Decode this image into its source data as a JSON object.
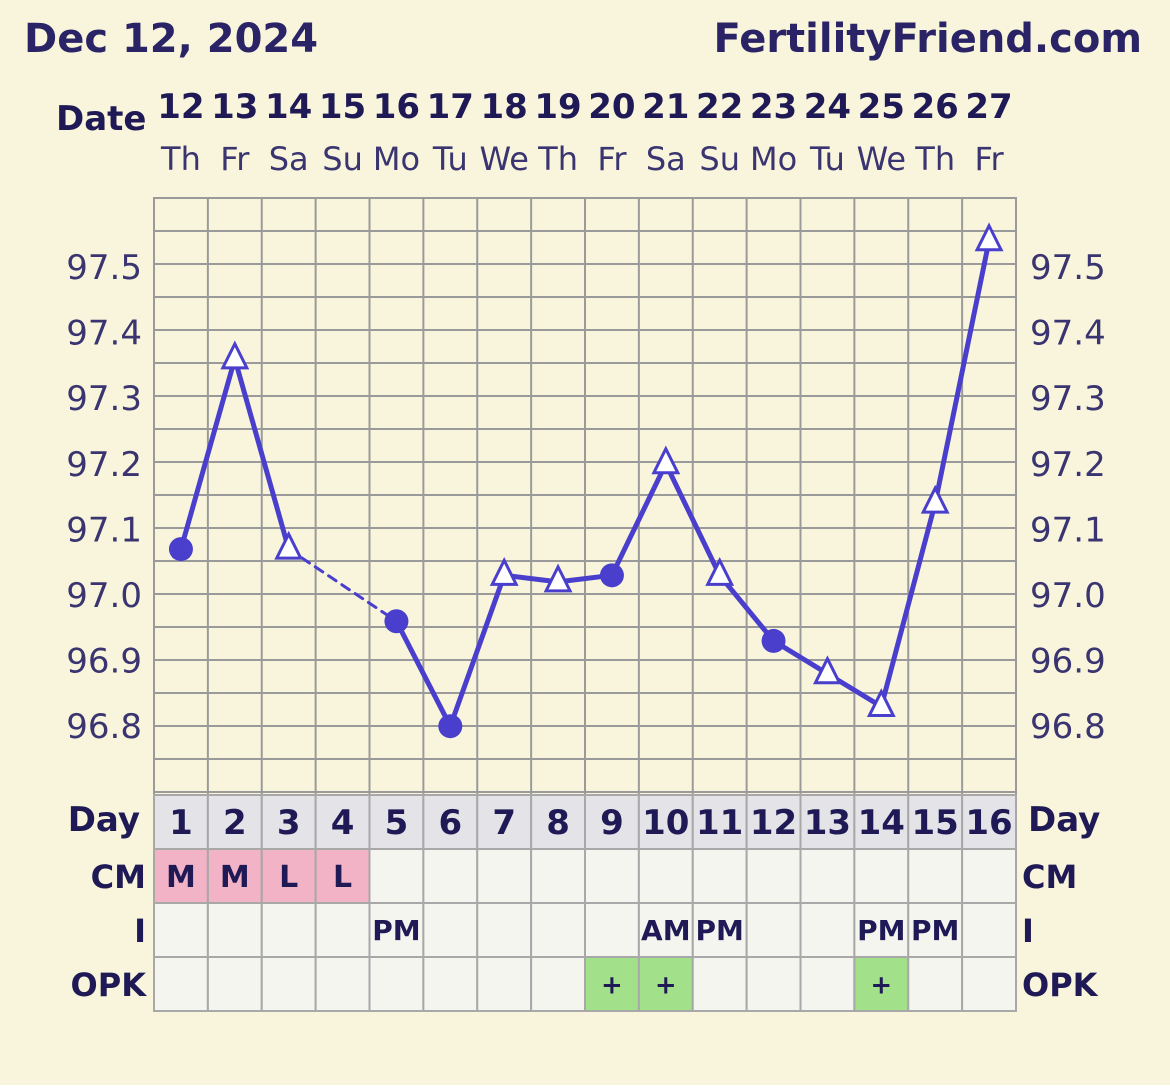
{
  "header": {
    "date": "Dec 12, 2024",
    "site": "FertilityFriend.com"
  },
  "labels": {
    "date": "Date",
    "day": "Day",
    "cm": "CM",
    "i": "I",
    "opk": "OPK"
  },
  "colors": {
    "background": "#f8f5dc",
    "line": "#4a3fcc",
    "grid": "#9a9a9a",
    "day_row": "#e4e4e8",
    "cell": "#f5f5f0",
    "cm_pink": "#f2b3c6",
    "opk_green": "#a3e08a",
    "text": "#2a2466"
  },
  "columns": {
    "dates": [
      "12",
      "13",
      "14",
      "15",
      "16",
      "17",
      "18",
      "19",
      "20",
      "21",
      "22",
      "23",
      "24",
      "25",
      "26",
      "27"
    ],
    "weekdays": [
      "Th",
      "Fr",
      "Sa",
      "Su",
      "Mo",
      "Tu",
      "We",
      "Th",
      "Fr",
      "Sa",
      "Su",
      "Mo",
      "Tu",
      "We",
      "Th",
      "Fr"
    ],
    "days": [
      "1",
      "2",
      "3",
      "4",
      "5",
      "6",
      "7",
      "8",
      "9",
      "10",
      "11",
      "12",
      "13",
      "14",
      "15",
      "16"
    ],
    "cm": [
      "M",
      "M",
      "L",
      "L",
      "",
      "",
      "",
      "",
      "",
      "",
      "",
      "",
      "",
      "",
      "",
      ""
    ],
    "i": [
      "",
      "",
      "",
      "",
      "PM",
      "",
      "",
      "",
      "",
      "AM",
      "PM",
      "",
      "",
      "PM",
      "PM",
      ""
    ],
    "opk": [
      "",
      "",
      "",
      "",
      "",
      "",
      "",
      "",
      "+",
      "+",
      "",
      "",
      "",
      "+",
      "",
      ""
    ]
  },
  "chart_data": {
    "type": "line",
    "x": [
      1,
      2,
      3,
      4,
      5,
      6,
      7,
      8,
      9,
      10,
      11,
      12,
      13,
      14,
      15,
      16
    ],
    "series": [
      {
        "values": [
          97.07,
          97.36,
          97.07,
          null,
          96.96,
          96.8,
          97.03,
          97.02,
          97.03,
          97.2,
          97.03,
          96.93,
          96.88,
          96.83,
          97.14,
          97.54
        ],
        "markers": [
          "circle",
          "triangle",
          "triangle",
          null,
          "circle",
          "circle",
          "triangle",
          "triangle",
          "circle",
          "triangle",
          "triangle",
          "circle",
          "triangle",
          "triangle",
          "triangle",
          "triangle"
        ]
      }
    ],
    "y_ticks": [
      "97.5",
      "97.4",
      "97.3",
      "97.2",
      "97.1",
      "97.0",
      "96.9",
      "96.8"
    ],
    "ylim": [
      96.7,
      97.6
    ],
    "gap_segment": "dashed line across missing day 4",
    "grid": true
  }
}
